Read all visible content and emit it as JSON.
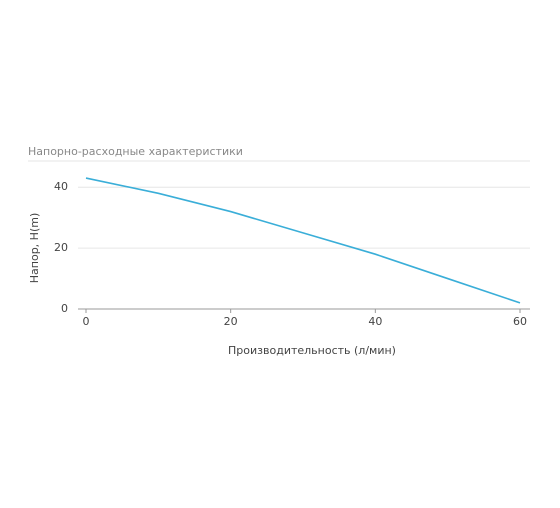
{
  "chart_data": {
    "type": "line",
    "title": "Напорно-расходные характеристики",
    "x_label": "Производительность (л/мин)",
    "y_label": "Напор, H(m)",
    "x": [
      0,
      10,
      20,
      30,
      40,
      50,
      60
    ],
    "series": [
      {
        "name": "Напор",
        "color": "#3aaed8",
        "values": [
          43,
          38,
          32,
          25,
          18,
          10,
          2
        ]
      }
    ],
    "xlim": [
      0,
      60
    ],
    "xticks": [
      0,
      20,
      40,
      60
    ],
    "ylim": [
      0,
      45
    ],
    "yticks": [
      0,
      20,
      40
    ],
    "grid": true
  }
}
